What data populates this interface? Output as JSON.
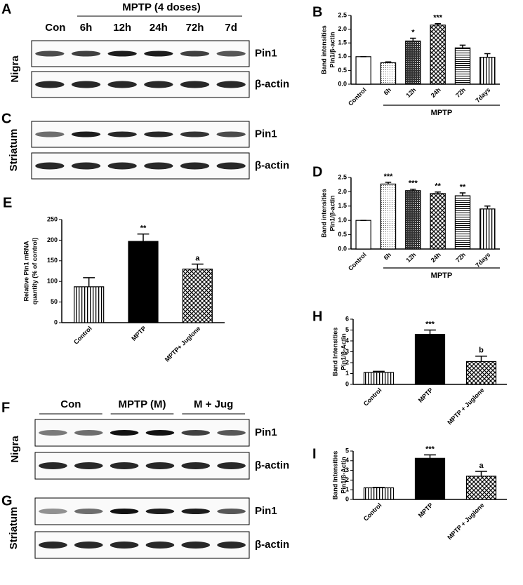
{
  "chart_data": [
    {
      "type": "bar",
      "panel": "B",
      "ylabel": [
        "Band intensities",
        "Pin1/β-actin"
      ],
      "group_label": "MPTP",
      "categories": [
        "Control",
        "6h",
        "12h",
        "24h",
        "72h",
        "7days"
      ],
      "values": [
        1.0,
        0.78,
        1.57,
        2.15,
        1.32,
        0.98
      ],
      "errors": [
        0,
        0.03,
        0.1,
        0.05,
        0.1,
        0.13
      ],
      "annotations": [
        null,
        null,
        "*",
        "***",
        null,
        null
      ],
      "patterns": [
        "white",
        "dots",
        "grid",
        "checker",
        "hlines",
        "vlines"
      ],
      "ylim": [
        0,
        2.5
      ],
      "yticks": [
        {
          "value": 0,
          "label": "0.0"
        },
        {
          "value": 0.5,
          "label": "0.5"
        },
        {
          "value": 1,
          "label": "1.0"
        },
        {
          "value": 1.5,
          "label": "1.5"
        },
        {
          "value": 2,
          "label": "2.0"
        },
        {
          "value": 2.5,
          "label": "2.5"
        }
      ]
    },
    {
      "type": "bar",
      "panel": "D",
      "ylabel": [
        "Band intensities",
        "Pin1/β-actin"
      ],
      "group_label": "MPTP",
      "categories": [
        "Control",
        "6h",
        "12h",
        "24h",
        "72h",
        "7days"
      ],
      "values": [
        1.0,
        2.27,
        2.04,
        1.94,
        1.86,
        1.4
      ],
      "errors": [
        0,
        0.06,
        0.05,
        0.05,
        0.1,
        0.1
      ],
      "annotations": [
        null,
        "***",
        "***",
        "**",
        "**",
        null
      ],
      "patterns": [
        "white",
        "dots",
        "grid",
        "checker",
        "hlines",
        "vlines"
      ],
      "ylim": [
        0,
        2.5
      ],
      "yticks": [
        {
          "value": 0,
          "label": "0.0"
        },
        {
          "value": 0.5,
          "label": "0.5"
        },
        {
          "value": 1,
          "label": "1.0"
        },
        {
          "value": 1.5,
          "label": "1.5"
        },
        {
          "value": 2,
          "label": "2.0"
        },
        {
          "value": 2.5,
          "label": "2.5"
        }
      ]
    },
    {
      "type": "bar",
      "panel": "E",
      "ylabel": [
        "Relative Pin1 mRNA",
        "quantity (% of control)"
      ],
      "categories": [
        "Control",
        "MPTP",
        "MPTP+ Juglone"
      ],
      "values": [
        87,
        197,
        130
      ],
      "errors": [
        22,
        18,
        12
      ],
      "annotations": [
        null,
        "**",
        "a"
      ],
      "patterns": [
        "vlines",
        "black",
        "checker"
      ],
      "ylim": [
        0,
        250
      ],
      "yticks": [
        0,
        50,
        100,
        150,
        200,
        250
      ]
    },
    {
      "type": "bar",
      "panel": "H",
      "ylabel": [
        "Band Intensities",
        "Pin1/β-Actin"
      ],
      "categories": [
        "Control",
        "MPTP",
        "MPTP + Juglone"
      ],
      "values": [
        1.1,
        4.6,
        2.1
      ],
      "errors": [
        0.1,
        0.4,
        0.5
      ],
      "annotations": [
        null,
        "***",
        "b"
      ],
      "patterns": [
        "vlines",
        "black",
        "checker"
      ],
      "ylim": [
        0,
        6
      ],
      "yticks": [
        0,
        1,
        2,
        3,
        4,
        5,
        6
      ]
    },
    {
      "type": "bar",
      "panel": "I",
      "ylabel": [
        "Band Intensities",
        "Pin1/β-Actin"
      ],
      "categories": [
        "Control",
        "MPTP",
        "MPTP + Juglone"
      ],
      "values": [
        1.2,
        4.25,
        2.4
      ],
      "errors": [
        0.05,
        0.35,
        0.5
      ],
      "annotations": [
        null,
        "***",
        "a"
      ],
      "patterns": [
        "vlines",
        "black",
        "checker"
      ],
      "ylim": [
        0,
        5
      ],
      "yticks": [
        0,
        1,
        2,
        3,
        4,
        5
      ]
    }
  ],
  "blots": [
    {
      "panel": "A",
      "header": "MPTP (4 doses)",
      "lanes": [
        "Con",
        "6h",
        "12h",
        "24h",
        "72h",
        "7d"
      ],
      "region": "Nigra",
      "rows": [
        "Pin1",
        "β-actin"
      ]
    },
    {
      "panel": "C",
      "region": "Striatum",
      "rows": [
        "Pin1",
        "β-actin"
      ]
    },
    {
      "panel": "F",
      "groups": [
        "Con",
        "MPTP (M)",
        "M + Jug"
      ],
      "region": "Nigra",
      "rows": [
        "Pin1",
        "β-actin"
      ]
    },
    {
      "panel": "G",
      "region": "Striatum",
      "rows": [
        "Pin1",
        "β-actin"
      ]
    }
  ]
}
